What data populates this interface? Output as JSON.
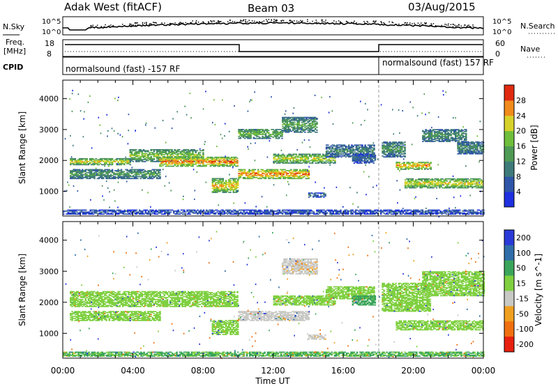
{
  "header": {
    "radar": "Adak West (fitACF)",
    "beam": "Beam 03",
    "date": "03/Aug/2015"
  },
  "noise_panel": {
    "left_label": "N.Sky",
    "left_ticks": [
      "10^5",
      "10^0"
    ],
    "right_label": "N.Search",
    "right_ticks": [
      "10^5",
      "10^0"
    ]
  },
  "freq_panel": {
    "label_line1": "Freq.",
    "label_line2": "[MHz]",
    "left_ticks": [
      "18",
      "8"
    ],
    "right_label": "Nave",
    "right_ticks": [
      "60",
      "0"
    ]
  },
  "cpid_panel": {
    "label": "CPID",
    "segments": [
      "normalsound (fast) -157 RF",
      "normalsound (fast) 157 RF"
    ]
  },
  "chart_data": [
    {
      "type": "heatmap",
      "quantity": "Power",
      "ylabel": "Slant Range [km]",
      "xlabel": "Time UT",
      "x_ticks": [
        "00:00",
        "04:00",
        "08:00",
        "12:00",
        "16:00",
        "20:00",
        "00:00"
      ],
      "y_ticks": [
        1000,
        2000,
        3000,
        4000
      ],
      "ylim": [
        200,
        4600
      ],
      "xlim_hours": [
        0,
        24
      ],
      "colorbar_label": "Power [dB]",
      "colorbar_ticks": [
        4,
        8,
        12,
        16,
        20,
        24,
        28
      ],
      "colorbar_range": [
        0,
        32
      ],
      "colors": [
        "#1e30e0",
        "#2f55a8",
        "#3f7a7a",
        "#4f9a55",
        "#6fbe3c",
        "#d7d22a",
        "#f08a1c",
        "#e02a10"
      ],
      "bands": [
        {
          "t": [
            0.4,
            3.8
          ],
          "r": [
            1850,
            2050
          ],
          "v": 22
        },
        {
          "t": [
            3.8,
            8.0
          ],
          "r": [
            1950,
            2350
          ],
          "v": 18
        },
        {
          "t": [
            5.5,
            10.0
          ],
          "r": [
            1800,
            2100
          ],
          "v": 27
        },
        {
          "t": [
            0.4,
            5.5
          ],
          "r": [
            1400,
            1700
          ],
          "v": 14
        },
        {
          "t": [
            8.5,
            10.0
          ],
          "r": [
            950,
            1400
          ],
          "v": 24
        },
        {
          "t": [
            10.0,
            14.0
          ],
          "r": [
            1400,
            1700
          ],
          "v": 27
        },
        {
          "t": [
            12.0,
            15.5
          ],
          "r": [
            1900,
            2200
          ],
          "v": 21
        },
        {
          "t": [
            10.0,
            12.5
          ],
          "r": [
            2700,
            3000
          ],
          "v": 17
        },
        {
          "t": [
            12.5,
            14.5
          ],
          "r": [
            2900,
            3400
          ],
          "v": 15
        },
        {
          "t": [
            15.0,
            17.8
          ],
          "r": [
            2100,
            2500
          ],
          "v": 11
        },
        {
          "t": [
            16.5,
            17.8
          ],
          "r": [
            1900,
            2200
          ],
          "v": 8
        },
        {
          "t": [
            14.0,
            15.0
          ],
          "r": [
            800,
            950
          ],
          "v": 8
        },
        {
          "t": [
            18.2,
            19.5
          ],
          "r": [
            2100,
            2600
          ],
          "v": 13
        },
        {
          "t": [
            19.0,
            21.0
          ],
          "r": [
            1700,
            1950
          ],
          "v": 25
        },
        {
          "t": [
            19.5,
            24.0
          ],
          "r": [
            1100,
            1400
          ],
          "v": 22
        },
        {
          "t": [
            20.5,
            23.0
          ],
          "r": [
            2600,
            3000
          ],
          "v": 13
        },
        {
          "t": [
            22.5,
            24.0
          ],
          "r": [
            2200,
            2600
          ],
          "v": 12
        },
        {
          "t": [
            0.0,
            24.0
          ],
          "r": [
            250,
            400
          ],
          "v": 6
        }
      ]
    },
    {
      "type": "heatmap",
      "quantity": "Velocity",
      "ylabel": "Slant Range [km]",
      "xlabel": "Time UT",
      "x_ticks": [
        "00:00",
        "04:00",
        "08:00",
        "12:00",
        "16:00",
        "20:00",
        "00:00"
      ],
      "y_ticks": [
        1000,
        2000,
        3000,
        4000
      ],
      "ylim": [
        200,
        4600
      ],
      "xlim_hours": [
        0,
        24
      ],
      "colorbar_label": "Velocity [m s^-1]",
      "colorbar_ticks": [
        200,
        100,
        50,
        15,
        -15,
        -50,
        -100,
        -200
      ],
      "colors": [
        "#2a3ad8",
        "#2f6ea8",
        "#3aa55a",
        "#7fd040",
        "#c8c8c4",
        "#f0a020",
        "#f07010",
        "#e82010"
      ],
      "bands": [
        {
          "t": [
            0.4,
            10.0
          ],
          "r": [
            1850,
            2350
          ],
          "v": 0
        },
        {
          "t": [
            0.4,
            5.5
          ],
          "r": [
            1400,
            1700
          ],
          "v": 0
        },
        {
          "t": [
            8.5,
            10.0
          ],
          "r": [
            950,
            1400
          ],
          "v": 0
        },
        {
          "t": [
            10.0,
            14.0
          ],
          "r": [
            1400,
            1700
          ],
          "v": -30
        },
        {
          "t": [
            12.0,
            15.5
          ],
          "r": [
            1900,
            2200
          ],
          "v": 0
        },
        {
          "t": [
            12.5,
            14.5
          ],
          "r": [
            2900,
            3400
          ],
          "v": -40
        },
        {
          "t": [
            15.0,
            17.8
          ],
          "r": [
            2100,
            2500
          ],
          "v": 0
        },
        {
          "t": [
            16.5,
            17.8
          ],
          "r": [
            1900,
            2200
          ],
          "v": 30
        },
        {
          "t": [
            14.0,
            15.0
          ],
          "r": [
            800,
            950
          ],
          "v": -40
        },
        {
          "t": [
            19.0,
            24.0
          ],
          "r": [
            1100,
            1400
          ],
          "v": 0
        },
        {
          "t": [
            18.2,
            21.0
          ],
          "r": [
            1700,
            2600
          ],
          "v": 0
        },
        {
          "t": [
            20.5,
            24.0
          ],
          "r": [
            2200,
            3000
          ],
          "v": 0
        },
        {
          "t": [
            0.0,
            24.0
          ],
          "r": [
            250,
            400
          ],
          "v": 20
        }
      ]
    }
  ]
}
